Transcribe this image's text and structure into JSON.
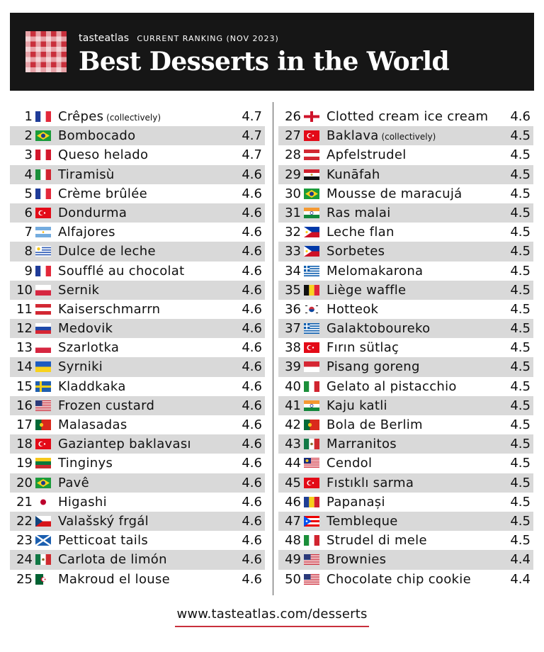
{
  "header": {
    "brand": "tasteatlas",
    "kicker": "CURRENT RANKING (NOV 2023)",
    "title": "Best Desserts in the World"
  },
  "left_column": [
    {
      "rank": "1",
      "name": "Crêpes",
      "note": " (collectively)",
      "rating": "4.7",
      "flag": "france"
    },
    {
      "rank": "2",
      "name": "Bombocado",
      "note": "",
      "rating": "4.7",
      "flag": "brazil"
    },
    {
      "rank": "3",
      "name": "Queso helado",
      "note": "",
      "rating": "4.7",
      "flag": "peru"
    },
    {
      "rank": "4",
      "name": "Tiramisù",
      "note": "",
      "rating": "4.6",
      "flag": "italy"
    },
    {
      "rank": "5",
      "name": "Crème brûlée",
      "note": "",
      "rating": "4.6",
      "flag": "france"
    },
    {
      "rank": "6",
      "name": "Dondurma",
      "note": "",
      "rating": "4.6",
      "flag": "turkey"
    },
    {
      "rank": "7",
      "name": "Alfajores",
      "note": "",
      "rating": "4.6",
      "flag": "argentina"
    },
    {
      "rank": "8",
      "name": "Dulce de leche",
      "note": "",
      "rating": "4.6",
      "flag": "uruguay"
    },
    {
      "rank": "9",
      "name": "Soufflé au chocolat",
      "note": "",
      "rating": "4.6",
      "flag": "france"
    },
    {
      "rank": "10",
      "name": "Sernik",
      "note": "",
      "rating": "4.6",
      "flag": "poland"
    },
    {
      "rank": "11",
      "name": "Kaiserschmarrn",
      "note": "",
      "rating": "4.6",
      "flag": "austria"
    },
    {
      "rank": "12",
      "name": "Medovik",
      "note": "",
      "rating": "4.6",
      "flag": "russia"
    },
    {
      "rank": "13",
      "name": "Szarlotka",
      "note": "",
      "rating": "4.6",
      "flag": "poland"
    },
    {
      "rank": "14",
      "name": "Syrniki",
      "note": "",
      "rating": "4.6",
      "flag": "ukraine"
    },
    {
      "rank": "15",
      "name": "Kladdkaka",
      "note": "",
      "rating": "4.6",
      "flag": "sweden"
    },
    {
      "rank": "16",
      "name": "Frozen custard",
      "note": "",
      "rating": "4.6",
      "flag": "usa"
    },
    {
      "rank": "17",
      "name": "Malasadas",
      "note": "",
      "rating": "4.6",
      "flag": "portugal"
    },
    {
      "rank": "18",
      "name": "Gaziantep baklavası",
      "note": "",
      "rating": "4.6",
      "flag": "turkey"
    },
    {
      "rank": "19",
      "name": "Tinginys",
      "note": "",
      "rating": "4.6",
      "flag": "lithuania"
    },
    {
      "rank": "20",
      "name": "Pavê",
      "note": "",
      "rating": "4.6",
      "flag": "brazil"
    },
    {
      "rank": "21",
      "name": "Higashi",
      "note": "",
      "rating": "4.6",
      "flag": "japan"
    },
    {
      "rank": "22",
      "name": "Valašský frgál",
      "note": "",
      "rating": "4.6",
      "flag": "czechia"
    },
    {
      "rank": "23",
      "name": "Petticoat tails",
      "note": "",
      "rating": "4.6",
      "flag": "scotland"
    },
    {
      "rank": "24",
      "name": "Carlota de limón",
      "note": "",
      "rating": "4.6",
      "flag": "mexico"
    },
    {
      "rank": "25",
      "name": "Makroud el louse",
      "note": "",
      "rating": "4.6",
      "flag": "algeria"
    }
  ],
  "right_column": [
    {
      "rank": "26",
      "name": "Clotted cream ice cream",
      "note": "",
      "rating": "4.6",
      "flag": "england"
    },
    {
      "rank": "27",
      "name": "Baklava",
      "note": " (collectively)",
      "rating": "4.5",
      "flag": "turkey"
    },
    {
      "rank": "28",
      "name": "Apfelstrudel",
      "note": "",
      "rating": "4.5",
      "flag": "austria"
    },
    {
      "rank": "29",
      "name": "Kunāfah",
      "note": "",
      "rating": "4.5",
      "flag": "egypt"
    },
    {
      "rank": "30",
      "name": "Mousse de maracujá",
      "note": "",
      "rating": "4.5",
      "flag": "brazil"
    },
    {
      "rank": "31",
      "name": "Ras malai",
      "note": "",
      "rating": "4.5",
      "flag": "india"
    },
    {
      "rank": "32",
      "name": "Leche flan",
      "note": "",
      "rating": "4.5",
      "flag": "philippines"
    },
    {
      "rank": "33",
      "name": "Sorbetes",
      "note": "",
      "rating": "4.5",
      "flag": "philippines"
    },
    {
      "rank": "34",
      "name": "Melomakarona",
      "note": "",
      "rating": "4.5",
      "flag": "greece"
    },
    {
      "rank": "35",
      "name": "Liège waffle",
      "note": "",
      "rating": "4.5",
      "flag": "belgium"
    },
    {
      "rank": "36",
      "name": "Hotteok",
      "note": "",
      "rating": "4.5",
      "flag": "korea"
    },
    {
      "rank": "37",
      "name": "Galaktoboureko",
      "note": "",
      "rating": "4.5",
      "flag": "greece"
    },
    {
      "rank": "38",
      "name": "Fırın sütlaç",
      "note": "",
      "rating": "4.5",
      "flag": "turkey"
    },
    {
      "rank": "39",
      "name": "Pisang goreng",
      "note": "",
      "rating": "4.5",
      "flag": "indonesia"
    },
    {
      "rank": "40",
      "name": "Gelato al pistacchio",
      "note": "",
      "rating": "4.5",
      "flag": "italy"
    },
    {
      "rank": "41",
      "name": "Kaju katli",
      "note": "",
      "rating": "4.5",
      "flag": "india"
    },
    {
      "rank": "42",
      "name": "Bola de Berlim",
      "note": "",
      "rating": "4.5",
      "flag": "portugal"
    },
    {
      "rank": "43",
      "name": "Marranitos",
      "note": "",
      "rating": "4.5",
      "flag": "mexico"
    },
    {
      "rank": "44",
      "name": "Cendol",
      "note": "",
      "rating": "4.5",
      "flag": "malaysia"
    },
    {
      "rank": "45",
      "name": "Fıstıklı sarma",
      "note": "",
      "rating": "4.5",
      "flag": "turkey"
    },
    {
      "rank": "46",
      "name": "Papanași",
      "note": "",
      "rating": "4.5",
      "flag": "romania"
    },
    {
      "rank": "47",
      "name": "Tembleque",
      "note": "",
      "rating": "4.5",
      "flag": "puerto-rico"
    },
    {
      "rank": "48",
      "name": "Strudel di mele",
      "note": "",
      "rating": "4.5",
      "flag": "italy"
    },
    {
      "rank": "49",
      "name": "Brownies",
      "note": "",
      "rating": "4.4",
      "flag": "usa"
    },
    {
      "rank": "50",
      "name": "Chocolate chip cookie",
      "note": "",
      "rating": "4.4",
      "flag": "usa"
    }
  ],
  "footer": {
    "url": "www.tasteatlas.com/desserts"
  },
  "colors": {
    "header_bg": "#161616",
    "row_shade": "#d9d9d9",
    "accent": "#c9303c"
  }
}
